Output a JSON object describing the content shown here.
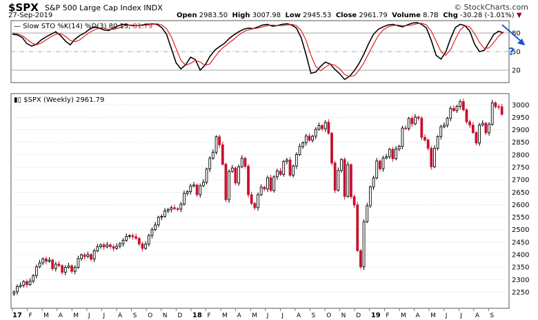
{
  "header": {
    "symbol": "$SPX",
    "name": "S&P 500 Large Cap Index  INDX",
    "date": "27-Sep-2019",
    "open_label": "Open",
    "open": "2983.50",
    "high_label": "High",
    "high": "3007.98",
    "low_label": "Low",
    "low": "2945.53",
    "close_label": "Close",
    "close": "2961.79",
    "volume_label": "Volume",
    "volume": "8.7B",
    "chg_label": "Chg",
    "chg": "-30.28 (-1.01%)",
    "brand": "© StockCharts.com"
  },
  "colors": {
    "up": "#000000",
    "down": "#c8102e",
    "k_line": "#000000",
    "d_line": "#e02020",
    "annotation": "#1f4fd8",
    "grid": "#d0d0d0"
  },
  "chart_data": [
    {
      "type": "line",
      "title": "Slow STO %K(14) %D(3)",
      "legend": "Slow STO %K(14) %D(3) 80.13, 81.79",
      "k_label": "80.13",
      "d_label": "81.79",
      "ylim": [
        0,
        100
      ],
      "yticks": [
        20,
        50,
        80
      ],
      "series": [
        {
          "name": "%K",
          "values": [
            78,
            77,
            73,
            63,
            59,
            62,
            69,
            74,
            78,
            82,
            76,
            67,
            61,
            70,
            76,
            80,
            86,
            90,
            88,
            85,
            84,
            88,
            92,
            94,
            93,
            92,
            92,
            93,
            94,
            95,
            94,
            89,
            78,
            55,
            32,
            22,
            29,
            41,
            37,
            20,
            28,
            42,
            52,
            58,
            63,
            71,
            77,
            82,
            86,
            88,
            87,
            90,
            93,
            94,
            91,
            92,
            94,
            95,
            93,
            88,
            72,
            45,
            15,
            17,
            26,
            33,
            30,
            21,
            14,
            5,
            10,
            19,
            31,
            46,
            63,
            78,
            86,
            90,
            93,
            94,
            92,
            90,
            93,
            96,
            97,
            94,
            88,
            68,
            44,
            38,
            49,
            71,
            89,
            94,
            92,
            83,
            62,
            50,
            52,
            65,
            78,
            83,
            80
          ]
        },
        {
          "name": "%D",
          "values": [
            80,
            79,
            76,
            70,
            64,
            61,
            64,
            69,
            74,
            78,
            79,
            75,
            68,
            66,
            69,
            75,
            81,
            85,
            88,
            88,
            86,
            86,
            88,
            91,
            93,
            93,
            92,
            92,
            93,
            94,
            95,
            93,
            87,
            74,
            55,
            36,
            28,
            31,
            36,
            33,
            28,
            30,
            41,
            51,
            58,
            64,
            70,
            77,
            82,
            85,
            87,
            88,
            90,
            92,
            93,
            92,
            92,
            93,
            94,
            92,
            84,
            68,
            44,
            26,
            19,
            25,
            30,
            28,
            22,
            13,
            10,
            11,
            20,
            32,
            47,
            62,
            76,
            85,
            90,
            92,
            93,
            92,
            92,
            93,
            95,
            96,
            93,
            83,
            67,
            50,
            44,
            53,
            70,
            85,
            92,
            90,
            79,
            65,
            55,
            56,
            65,
            75,
            81.79
          ]
        }
      ]
    },
    {
      "type": "candlestick",
      "title": "$SPX (Weekly)",
      "legend": "$SPX (Weekly) 2961.79",
      "last": "2961.79",
      "ylim": [
        2185,
        3045
      ],
      "yticks": [
        2250,
        2300,
        2350,
        2400,
        2450,
        2500,
        2550,
        2600,
        2650,
        2700,
        2750,
        2800,
        2850,
        2900,
        2950,
        3000
      ],
      "x_month_labels": [
        "17",
        "F",
        "M",
        "A",
        "M",
        "J",
        "J",
        "A",
        "S",
        "O",
        "N",
        "D",
        "18",
        "F",
        "M",
        "A",
        "M",
        "J",
        "J",
        "A",
        "S",
        "O",
        "N",
        "D",
        "19",
        "F",
        "M",
        "A",
        "M",
        "J",
        "J",
        "A",
        "S"
      ],
      "close": [
        2251,
        2272,
        2277,
        2292,
        2280,
        2294,
        2316,
        2351,
        2367,
        2383,
        2373,
        2378,
        2344,
        2362,
        2356,
        2329,
        2349,
        2355,
        2333,
        2349,
        2384,
        2399,
        2392,
        2400,
        2382,
        2415,
        2432,
        2439,
        2431,
        2439,
        2432,
        2425,
        2434,
        2444,
        2457,
        2473,
        2476,
        2472,
        2465,
        2443,
        2425,
        2442,
        2477,
        2500,
        2519,
        2550,
        2553,
        2575,
        2581,
        2588,
        2584,
        2582,
        2602,
        2645,
        2652,
        2675,
        2679,
        2640,
        2676,
        2690,
        2743,
        2786,
        2810,
        2872,
        2840,
        2762,
        2620,
        2733,
        2747,
        2687,
        2752,
        2786,
        2754,
        2640,
        2605,
        2588,
        2640,
        2670,
        2663,
        2708,
        2657,
        2712,
        2735,
        2721,
        2773,
        2779,
        2718,
        2755,
        2801,
        2833,
        2848,
        2875,
        2858,
        2874,
        2902,
        2917,
        2904,
        2930,
        2886,
        2767,
        2658,
        2737,
        2781,
        2633,
        2760,
        2632,
        2599,
        2416,
        2351,
        2532,
        2596,
        2671,
        2707,
        2775,
        2744,
        2787,
        2792,
        2822,
        2784,
        2823,
        2834,
        2907,
        2905,
        2946,
        2924,
        2951,
        2946,
        2870,
        2859,
        2826,
        2752,
        2826,
        2873,
        2912,
        2918,
        2946,
        2986,
        2977,
        2994,
        3013,
        2980,
        2932,
        2919,
        2889,
        2847,
        2919,
        2926,
        2888,
        2922,
        3008,
        2993,
        2992,
        2962
      ]
    }
  ]
}
